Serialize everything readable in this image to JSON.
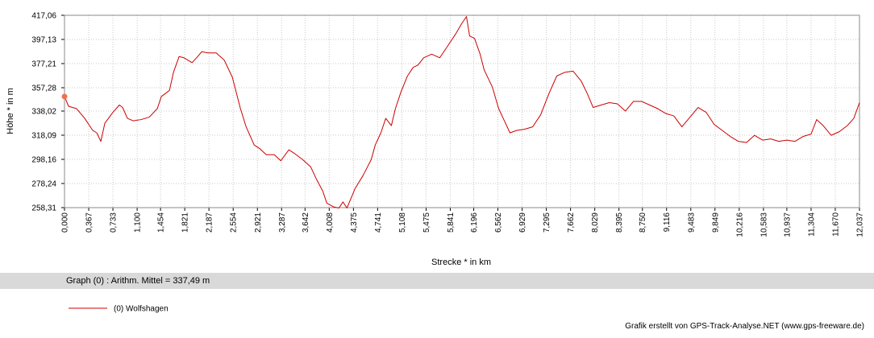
{
  "chart_data": {
    "type": "line",
    "ylabel": "Höhe *  in  m",
    "xlabel": "Strecke *  in  km",
    "summary": "Graph (0) :   Arithm. Mittel = 337,49 m",
    "credit": "Grafik erstellt von GPS-Track-Analyse.NET (www.gps-freeware.de)",
    "grid": true,
    "xlim": [
      0,
      12.037
    ],
    "ylim": [
      258.31,
      417.06
    ],
    "xticks": [
      {
        "value": 0,
        "label": "0,000"
      },
      {
        "value": 0.367,
        "label": "0,367"
      },
      {
        "value": 0.733,
        "label": "0,733"
      },
      {
        "value": 1.1,
        "label": "1,100"
      },
      {
        "value": 1.454,
        "label": "1,454"
      },
      {
        "value": 1.821,
        "label": "1,821"
      },
      {
        "value": 2.187,
        "label": "2,187"
      },
      {
        "value": 2.554,
        "label": "2,554"
      },
      {
        "value": 2.921,
        "label": "2,921"
      },
      {
        "value": 3.287,
        "label": "3,287"
      },
      {
        "value": 3.642,
        "label": "3,642"
      },
      {
        "value": 4.008,
        "label": "4,008"
      },
      {
        "value": 4.375,
        "label": "4,375"
      },
      {
        "value": 4.741,
        "label": "4,741"
      },
      {
        "value": 5.108,
        "label": "5,108"
      },
      {
        "value": 5.475,
        "label": "5,475"
      },
      {
        "value": 5.841,
        "label": "5,841"
      },
      {
        "value": 6.196,
        "label": "6,196"
      },
      {
        "value": 6.562,
        "label": "6,562"
      },
      {
        "value": 6.929,
        "label": "6,929"
      },
      {
        "value": 7.295,
        "label": "7,295"
      },
      {
        "value": 7.662,
        "label": "7,662"
      },
      {
        "value": 8.029,
        "label": "8,029"
      },
      {
        "value": 8.395,
        "label": "8,395"
      },
      {
        "value": 8.75,
        "label": "8,750"
      },
      {
        "value": 9.116,
        "label": "9,116"
      },
      {
        "value": 9.483,
        "label": "9,483"
      },
      {
        "value": 9.849,
        "label": "9,849"
      },
      {
        "value": 10.216,
        "label": "10,216"
      },
      {
        "value": 10.583,
        "label": "10,583"
      },
      {
        "value": 10.937,
        "label": "10,937"
      },
      {
        "value": 11.304,
        "label": "11,304"
      },
      {
        "value": 11.67,
        "label": "11,670"
      },
      {
        "value": 12.037,
        "label": "12,037"
      }
    ],
    "yticks": [
      {
        "value": 258.31,
        "label": "258,31"
      },
      {
        "value": 278.24,
        "label": "278,24"
      },
      {
        "value": 298.16,
        "label": "298,16"
      },
      {
        "value": 318.09,
        "label": "318,09"
      },
      {
        "value": 338.02,
        "label": "338,02"
      },
      {
        "value": 357.28,
        "label": "357,28"
      },
      {
        "value": 377.21,
        "label": "377,21"
      },
      {
        "value": 397.13,
        "label": "397,13"
      },
      {
        "value": 417.06,
        "label": "417,06"
      }
    ],
    "x": [
      0.0,
      0.061,
      0.183,
      0.306,
      0.428,
      0.489,
      0.55,
      0.611,
      0.733,
      0.831,
      0.88,
      0.953,
      1.039,
      1.161,
      1.283,
      1.405,
      1.466,
      1.589,
      1.65,
      1.735,
      1.808,
      1.931,
      2.016,
      2.077,
      2.175,
      2.297,
      2.419,
      2.541,
      2.664,
      2.75,
      2.872,
      2.957,
      3.055,
      3.177,
      3.275,
      3.397,
      3.483,
      3.605,
      3.727,
      3.813,
      3.91,
      3.972,
      4.07,
      4.155,
      4.216,
      4.277,
      4.399,
      4.522,
      4.644,
      4.705,
      4.79,
      4.864,
      4.949,
      5.01,
      5.096,
      5.193,
      5.279,
      5.352,
      5.438,
      5.56,
      5.682,
      5.805,
      5.927,
      6.012,
      6.086,
      6.134,
      6.208,
      6.293,
      6.354,
      6.477,
      6.574,
      6.66,
      6.745,
      6.843,
      6.965,
      7.088,
      7.21,
      7.332,
      7.454,
      7.576,
      7.699,
      7.821,
      7.919,
      8.004,
      8.126,
      8.249,
      8.371,
      8.493,
      8.615,
      8.737,
      8.86,
      8.982,
      9.104,
      9.226,
      9.348,
      9.471,
      9.593,
      9.715,
      9.837,
      9.96,
      10.082,
      10.204,
      10.326,
      10.448,
      10.571,
      10.693,
      10.815,
      10.937,
      11.059,
      11.181,
      11.304,
      11.389,
      11.487,
      11.609,
      11.731,
      11.853,
      11.951,
      12.037
    ],
    "series": [
      {
        "name": "(0) Wolfshagen",
        "color": "#cc0000",
        "marker_color": "#f07050",
        "values": [
          350,
          342,
          340,
          332,
          322,
          320,
          313,
          328,
          337,
          343,
          341,
          332,
          330,
          331,
          333,
          340,
          350,
          355,
          370,
          383,
          382,
          378,
          383,
          387,
          386,
          386,
          380,
          366,
          340,
          325,
          310,
          307,
          302,
          302,
          297,
          306,
          303,
          298,
          292,
          282,
          272,
          262,
          259,
          258,
          263,
          258,
          274,
          285,
          298,
          310,
          320,
          332,
          326,
          340,
          354,
          367,
          374,
          376,
          382,
          385,
          382,
          392,
          402,
          410,
          416,
          400,
          398,
          385,
          372,
          358,
          340,
          330,
          320,
          322,
          323,
          325,
          335,
          352,
          367,
          370,
          371,
          363,
          352,
          341,
          343,
          345,
          344,
          338,
          346,
          346,
          343,
          340,
          336,
          334,
          325,
          333,
          341,
          337,
          327,
          322,
          317,
          313,
          312,
          318,
          314,
          315,
          313,
          314,
          313,
          317,
          319,
          331,
          326,
          318,
          321,
          326,
          332,
          345
        ]
      }
    ]
  }
}
